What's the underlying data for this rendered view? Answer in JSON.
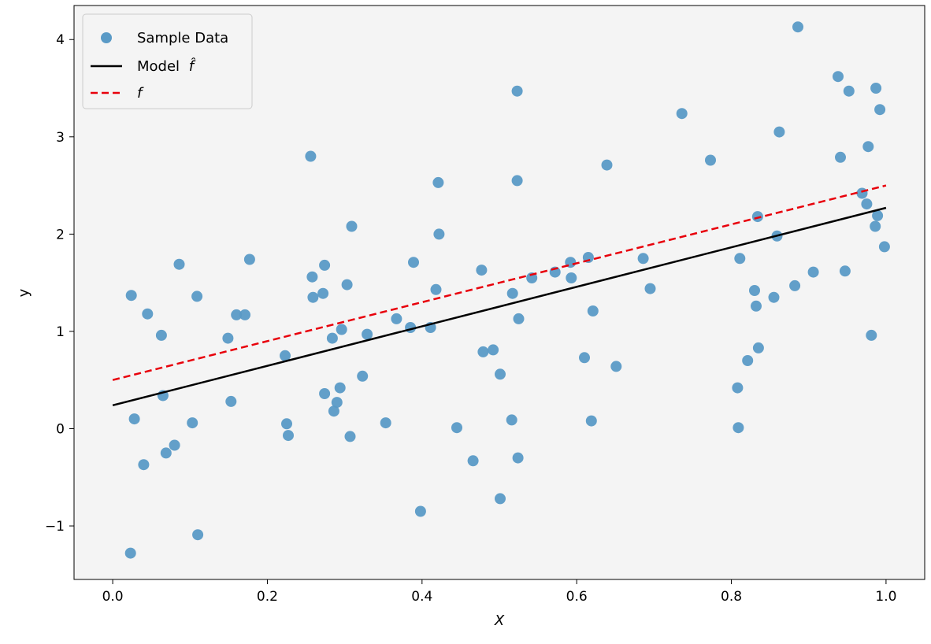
{
  "chart_data": {
    "type": "scatter",
    "xlabel": "X",
    "ylabel": "y",
    "xlim": [
      -0.05,
      1.05
    ],
    "ylim": [
      -1.55,
      4.35
    ],
    "xticks": [
      0.0,
      0.2,
      0.4,
      0.6,
      0.8,
      1.0
    ],
    "xtick_labels": [
      "0.0",
      "0.2",
      "0.4",
      "0.6",
      "0.8",
      "1.0"
    ],
    "yticks": [
      -1,
      0,
      1,
      2,
      3,
      4
    ],
    "ytick_labels": [
      "−1",
      "0",
      "1",
      "2",
      "3",
      "4"
    ],
    "grid": false,
    "legend_position": "top-left",
    "colors": {
      "plot_background": "#f4f4f4",
      "scatter": "#5a9ac6",
      "model": "#000000",
      "true_function": "#e8000b"
    },
    "series": [
      {
        "name": "Sample Data",
        "kind": "scatter",
        "x": [
          0.023,
          0.024,
          0.028,
          0.04,
          0.045,
          0.063,
          0.065,
          0.069,
          0.08,
          0.086,
          0.103,
          0.109,
          0.11,
          0.149,
          0.153,
          0.16,
          0.171,
          0.177,
          0.223,
          0.225,
          0.227,
          0.256,
          0.258,
          0.259,
          0.272,
          0.274,
          0.274,
          0.284,
          0.286,
          0.29,
          0.294,
          0.296,
          0.303,
          0.307,
          0.309,
          0.323,
          0.329,
          0.353,
          0.367,
          0.385,
          0.389,
          0.398,
          0.411,
          0.418,
          0.421,
          0.422,
          0.445,
          0.466,
          0.477,
          0.479,
          0.492,
          0.501,
          0.501,
          0.516,
          0.517,
          0.523,
          0.523,
          0.524,
          0.525,
          0.542,
          0.572,
          0.592,
          0.593,
          0.61,
          0.615,
          0.619,
          0.621,
          0.639,
          0.651,
          0.686,
          0.695,
          0.736,
          0.773,
          0.808,
          0.809,
          0.811,
          0.821,
          0.83,
          0.832,
          0.834,
          0.835,
          0.855,
          0.859,
          0.862,
          0.882,
          0.886,
          0.906,
          0.938,
          0.941,
          0.947,
          0.952,
          0.969,
          0.975,
          0.977,
          0.981,
          0.986,
          0.987,
          0.989,
          0.992,
          0.998
        ],
        "y": [
          -1.28,
          1.37,
          0.1,
          -0.37,
          1.18,
          0.96,
          0.34,
          -0.25,
          -0.17,
          1.69,
          0.06,
          1.36,
          -1.09,
          0.93,
          0.28,
          1.17,
          1.17,
          1.74,
          0.75,
          0.05,
          -0.07,
          2.8,
          1.56,
          1.35,
          1.39,
          1.68,
          0.36,
          0.93,
          0.18,
          0.27,
          0.42,
          1.02,
          1.48,
          -0.08,
          2.08,
          0.54,
          0.97,
          0.06,
          1.13,
          1.04,
          1.71,
          -0.85,
          1.04,
          1.43,
          2.53,
          2.0,
          0.01,
          -0.33,
          1.63,
          0.79,
          0.81,
          0.56,
          -0.72,
          0.09,
          1.39,
          3.47,
          2.55,
          -0.3,
          1.13,
          1.55,
          1.61,
          1.71,
          1.55,
          0.73,
          1.76,
          0.08,
          1.21,
          2.71,
          0.64,
          1.75,
          1.44,
          3.24,
          2.76,
          0.42,
          0.01,
          1.75,
          0.7,
          1.42,
          1.26,
          2.18,
          0.83,
          1.35,
          1.98,
          3.05,
          1.47,
          4.13,
          1.61,
          3.62,
          2.79,
          1.62,
          3.47,
          2.42,
          2.31,
          2.9,
          0.96,
          2.08,
          3.5,
          2.19,
          3.28,
          1.87
        ]
      },
      {
        "name": "Model",
        "name_hat_symbol": "f̂",
        "kind": "line",
        "style": "solid",
        "x": [
          0.0,
          1.0
        ],
        "y": [
          0.24,
          2.27
        ]
      },
      {
        "name": "f",
        "kind": "line",
        "style": "dashed",
        "x": [
          0.0,
          1.0
        ],
        "y": [
          0.5,
          2.5
        ]
      }
    ]
  }
}
